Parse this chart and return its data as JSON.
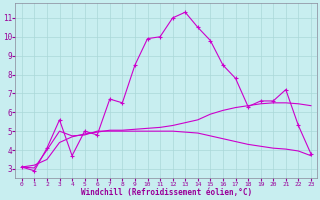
{
  "xlabel": "Windchill (Refroidissement éolien,°C)",
  "bg_color": "#c8eef0",
  "grid_color": "#aad8d8",
  "line_color": "#cc00cc",
  "xlim": [
    -0.5,
    23.5
  ],
  "ylim": [
    2.5,
    11.8
  ],
  "xticks": [
    0,
    1,
    2,
    3,
    4,
    5,
    6,
    7,
    8,
    9,
    10,
    11,
    12,
    13,
    14,
    15,
    16,
    17,
    18,
    19,
    20,
    21,
    22,
    23
  ],
  "yticks": [
    3,
    4,
    5,
    6,
    7,
    8,
    9,
    10,
    11
  ],
  "line1_x": [
    0,
    1,
    2,
    3,
    4,
    5,
    6,
    7,
    8,
    9,
    10,
    11,
    12,
    13,
    14,
    15,
    16,
    17,
    18,
    19,
    20,
    21,
    22,
    23
  ],
  "line1_y": [
    3.1,
    2.9,
    4.1,
    5.6,
    3.7,
    5.0,
    4.8,
    6.7,
    6.5,
    8.5,
    9.9,
    10.0,
    11.0,
    11.3,
    10.5,
    9.8,
    8.5,
    7.8,
    6.3,
    6.6,
    6.6,
    7.2,
    5.3,
    3.8
  ],
  "line2_x": [
    0,
    1,
    2,
    3,
    4,
    5,
    6,
    7,
    8,
    9,
    10,
    11,
    12,
    13,
    14,
    15,
    16,
    17,
    18,
    19,
    20,
    21,
    22,
    23
  ],
  "line2_y": [
    3.1,
    3.2,
    3.5,
    4.4,
    4.7,
    4.85,
    4.95,
    5.05,
    5.05,
    5.1,
    5.15,
    5.2,
    5.3,
    5.45,
    5.6,
    5.9,
    6.1,
    6.25,
    6.35,
    6.45,
    6.5,
    6.5,
    6.45,
    6.35
  ],
  "line3_x": [
    0,
    1,
    2,
    3,
    4,
    5,
    6,
    7,
    8,
    9,
    10,
    11,
    12,
    13,
    14,
    15,
    16,
    17,
    18,
    19,
    20,
    21,
    22,
    23
  ],
  "line3_y": [
    3.1,
    3.05,
    4.0,
    5.0,
    4.75,
    4.8,
    5.0,
    5.0,
    5.0,
    5.0,
    5.0,
    5.0,
    5.0,
    4.95,
    4.9,
    4.75,
    4.6,
    4.45,
    4.3,
    4.2,
    4.1,
    4.05,
    3.95,
    3.7
  ]
}
